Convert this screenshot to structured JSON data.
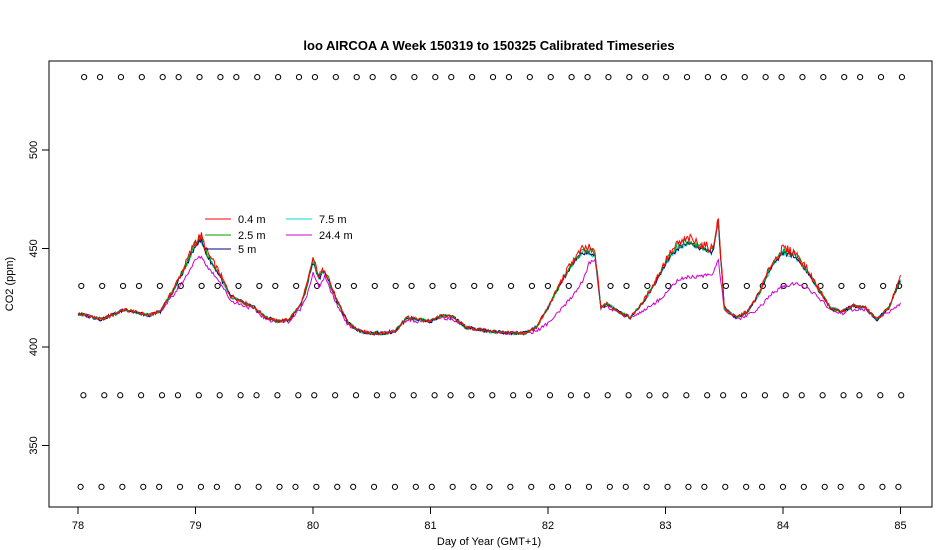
{
  "chart_data": {
    "type": "line",
    "title": "loo AIRCOA A  Week 150319 to 150325  Calibrated Timeseries",
    "xlabel": "Day of Year (GMT+1)",
    "ylabel": "CO2 (ppm)",
    "xlim": [
      78,
      85
    ],
    "ylim": [
      328,
      540
    ],
    "x_ticks": [
      "78",
      "79",
      "80",
      "81",
      "82",
      "83",
      "84",
      "85"
    ],
    "y_ticks": [
      "350",
      "400",
      "450",
      "500"
    ],
    "grid": false,
    "legend_position": "upper-left inside plot",
    "series": [
      {
        "name": "0.4 m",
        "color": "#ff0000",
        "offset": 0,
        "extra": 1.0,
        "x": [
          78.0,
          78.2,
          78.4,
          78.6,
          78.7,
          78.8,
          78.9,
          79.0,
          79.05,
          79.1,
          79.2,
          79.3,
          79.5,
          79.6,
          79.7,
          79.8,
          79.9,
          79.95,
          80.0,
          80.05,
          80.1,
          80.2,
          80.3,
          80.4,
          80.5,
          80.6,
          80.7,
          80.8,
          80.9,
          81.0,
          81.1,
          81.2,
          81.3,
          81.5,
          81.7,
          81.8,
          81.9,
          82.0,
          82.1,
          82.2,
          82.3,
          82.35,
          82.4,
          82.45,
          82.5,
          82.6,
          82.7,
          82.8,
          82.9,
          83.0,
          83.1,
          83.2,
          83.3,
          83.4,
          83.45,
          83.5,
          83.6,
          83.7,
          83.8,
          83.9,
          84.0,
          84.1,
          84.2,
          84.3,
          84.4,
          84.5,
          84.6,
          84.7,
          84.8,
          84.9,
          85.0
        ],
        "y": [
          417,
          414,
          419,
          416,
          418,
          428,
          440,
          454,
          456,
          448,
          438,
          426,
          420,
          415,
          413,
          414,
          422,
          432,
          445,
          436,
          440,
          424,
          412,
          408,
          407,
          407,
          408,
          415,
          414,
          413,
          416,
          415,
          410,
          408,
          407,
          407,
          410,
          420,
          432,
          443,
          450,
          450,
          448,
          420,
          422,
          418,
          415,
          422,
          432,
          444,
          452,
          455,
          452,
          450,
          465,
          420,
          415,
          418,
          428,
          442,
          450,
          448,
          440,
          430,
          420,
          418,
          421,
          420,
          414,
          420,
          435
        ]
      },
      {
        "name": "2.5 m",
        "color": "#00a000",
        "offset": -1,
        "extra": 0.6,
        "x": [
          78.0,
          78.2,
          78.4,
          78.6,
          78.7,
          78.8,
          78.9,
          79.0,
          79.05,
          79.1,
          79.2,
          79.3,
          79.5,
          79.6,
          79.7,
          79.8,
          79.9,
          79.95,
          80.0,
          80.05,
          80.1,
          80.2,
          80.3,
          80.4,
          80.5,
          80.6,
          80.7,
          80.8,
          80.9,
          81.0,
          81.1,
          81.2,
          81.3,
          81.5,
          81.7,
          81.8,
          81.9,
          82.0,
          82.1,
          82.2,
          82.3,
          82.35,
          82.4,
          82.45,
          82.5,
          82.6,
          82.7,
          82.8,
          82.9,
          83.0,
          83.1,
          83.2,
          83.3,
          83.4,
          83.45,
          83.5,
          83.6,
          83.7,
          83.8,
          83.9,
          84.0,
          84.1,
          84.2,
          84.3,
          84.4,
          84.5,
          84.6,
          84.7,
          84.8,
          84.9,
          85.0
        ],
        "y": [
          417,
          414,
          419,
          416,
          418,
          428,
          440,
          454,
          456,
          448,
          438,
          426,
          420,
          415,
          413,
          414,
          422,
          432,
          445,
          436,
          440,
          424,
          412,
          408,
          407,
          407,
          408,
          415,
          414,
          413,
          416,
          415,
          410,
          408,
          407,
          407,
          410,
          420,
          432,
          443,
          450,
          450,
          448,
          420,
          422,
          418,
          415,
          422,
          432,
          444,
          452,
          455,
          452,
          450,
          465,
          420,
          415,
          418,
          428,
          442,
          450,
          448,
          440,
          430,
          420,
          418,
          421,
          420,
          414,
          420,
          435
        ]
      },
      {
        "name": "5 m",
        "color": "#000080",
        "offset": -2,
        "extra": 0.3,
        "x": [
          78.0,
          78.2,
          78.4,
          78.6,
          78.7,
          78.8,
          78.9,
          79.0,
          79.05,
          79.1,
          79.2,
          79.3,
          79.5,
          79.6,
          79.7,
          79.8,
          79.9,
          79.95,
          80.0,
          80.05,
          80.1,
          80.2,
          80.3,
          80.4,
          80.5,
          80.6,
          80.7,
          80.8,
          80.9,
          81.0,
          81.1,
          81.2,
          81.3,
          81.5,
          81.7,
          81.8,
          81.9,
          82.0,
          82.1,
          82.2,
          82.3,
          82.35,
          82.4,
          82.45,
          82.5,
          82.6,
          82.7,
          82.8,
          82.9,
          83.0,
          83.1,
          83.2,
          83.3,
          83.4,
          83.45,
          83.5,
          83.6,
          83.7,
          83.8,
          83.9,
          84.0,
          84.1,
          84.2,
          84.3,
          84.4,
          84.5,
          84.6,
          84.7,
          84.8,
          84.9,
          85.0
        ],
        "y": [
          417,
          414,
          419,
          416,
          418,
          428,
          440,
          454,
          456,
          448,
          438,
          426,
          420,
          415,
          413,
          414,
          422,
          432,
          445,
          436,
          440,
          424,
          412,
          408,
          407,
          407,
          408,
          415,
          414,
          413,
          416,
          415,
          410,
          408,
          407,
          407,
          410,
          420,
          432,
          443,
          450,
          450,
          448,
          420,
          422,
          418,
          415,
          422,
          432,
          444,
          452,
          455,
          452,
          450,
          465,
          420,
          415,
          418,
          428,
          442,
          450,
          448,
          440,
          430,
          420,
          418,
          421,
          420,
          414,
          420,
          435
        ]
      },
      {
        "name": "7.5 m",
        "color": "#00d8d8",
        "offset": -2,
        "extra": 0.3,
        "x": [
          78.0,
          78.2,
          78.4,
          78.6,
          78.7,
          78.8,
          78.9,
          79.0,
          79.05,
          79.1,
          79.2,
          79.3,
          79.5,
          79.6,
          79.7,
          79.8,
          79.9,
          79.95,
          80.0,
          80.05,
          80.1,
          80.2,
          80.3,
          80.4,
          80.5,
          80.6,
          80.7,
          80.8,
          80.9,
          81.0,
          81.1,
          81.2,
          81.3,
          81.5,
          81.7,
          81.8,
          81.9,
          82.0,
          82.1,
          82.2,
          82.3,
          82.35,
          82.4,
          82.45,
          82.5,
          82.6,
          82.7,
          82.8,
          82.9,
          83.0,
          83.1,
          83.2,
          83.3,
          83.4,
          83.45,
          83.5,
          83.6,
          83.7,
          83.8,
          83.9,
          84.0,
          84.1,
          84.2,
          84.3,
          84.4,
          84.5,
          84.6,
          84.7,
          84.8,
          84.9,
          85.0
        ],
        "y": [
          417,
          414,
          419,
          416,
          418,
          428,
          440,
          454,
          456,
          448,
          438,
          426,
          420,
          415,
          413,
          414,
          422,
          432,
          445,
          436,
          440,
          424,
          412,
          408,
          407,
          407,
          408,
          415,
          414,
          413,
          416,
          415,
          410,
          408,
          407,
          407,
          410,
          420,
          432,
          443,
          450,
          450,
          448,
          420,
          422,
          418,
          415,
          422,
          432,
          444,
          452,
          455,
          452,
          450,
          465,
          420,
          415,
          418,
          428,
          442,
          450,
          448,
          440,
          430,
          420,
          418,
          421,
          420,
          414,
          420,
          435
        ]
      },
      {
        "name": "24.4 m",
        "color": "#d000d0",
        "offset": -4,
        "extra": 0,
        "x": [
          78.0,
          78.2,
          78.4,
          78.6,
          78.7,
          78.8,
          78.9,
          79.0,
          79.05,
          79.1,
          79.2,
          79.3,
          79.5,
          79.6,
          79.7,
          79.8,
          79.9,
          79.95,
          80.0,
          80.05,
          80.1,
          80.2,
          80.3,
          80.4,
          80.5,
          80.6,
          80.7,
          80.8,
          80.9,
          81.0,
          81.1,
          81.2,
          81.3,
          81.5,
          81.7,
          81.8,
          81.9,
          82.0,
          82.1,
          82.2,
          82.3,
          82.35,
          82.4,
          82.45,
          82.5,
          82.6,
          82.7,
          82.8,
          82.9,
          83.0,
          83.1,
          83.2,
          83.3,
          83.4,
          83.45,
          83.5,
          83.6,
          83.7,
          83.8,
          83.9,
          84.0,
          84.1,
          84.2,
          84.3,
          84.4,
          84.5,
          84.6,
          84.7,
          84.8,
          84.9,
          85.0
        ],
        "y": [
          417,
          414,
          419,
          416,
          418,
          426,
          436,
          448,
          450,
          444,
          436,
          424,
          419,
          414,
          413,
          413,
          420,
          428,
          440,
          432,
          438,
          422,
          411,
          408,
          407,
          407,
          408,
          414,
          413,
          413,
          415,
          414,
          410,
          408,
          407,
          407,
          408,
          412,
          418,
          426,
          436,
          446,
          448,
          420,
          421,
          417,
          415,
          418,
          422,
          428,
          436,
          438,
          438,
          440,
          448,
          419,
          414,
          416,
          420,
          428,
          432,
          434,
          432,
          426,
          419,
          417,
          419,
          419,
          414,
          418,
          422
        ]
      }
    ],
    "reference_markers": {
      "symbol": "open-circle",
      "levels_y": [
        329,
        375.5,
        431,
        537
      ],
      "x_start": 78.04,
      "x_end": 85.0,
      "count": 43
    }
  }
}
